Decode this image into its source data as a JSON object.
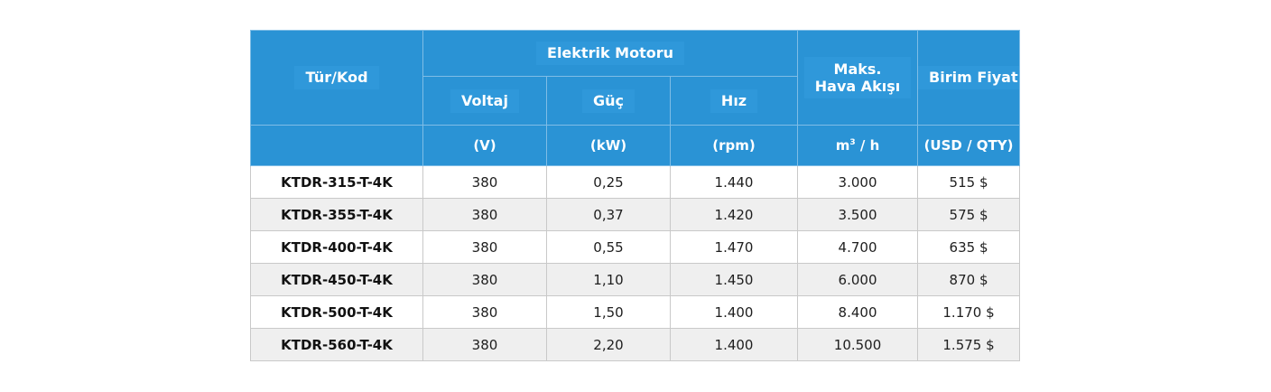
{
  "header": {
    "tur_kod": "Tür/Kod",
    "elektrik_motoru": "Elektrik Motoru",
    "voltaj": "Voltaj",
    "guc": "Güç",
    "hiz": "Hız",
    "maks_line1": "Maks.",
    "maks_line2": "Hava Akışı",
    "birim_fiyat": "Birim Fiyat",
    "unit_v": "(V)",
    "unit_kw": "(kW)",
    "unit_rpm": "(rpm)",
    "unit_airflow_base": "m",
    "unit_airflow_sup": "3",
    "unit_airflow_rest": "/ h",
    "unit_price": "(USD / QTY)"
  },
  "rows": [
    {
      "code": "KTDR-315-T-4K",
      "voltaj": "380",
      "guc": "0,25",
      "hiz": "1.440",
      "hava": "3.000",
      "fiyat": "515 $"
    },
    {
      "code": "KTDR-355-T-4K",
      "voltaj": "380",
      "guc": "0,37",
      "hiz": "1.420",
      "hava": "3.500",
      "fiyat": "575 $"
    },
    {
      "code": "KTDR-400-T-4K",
      "voltaj": "380",
      "guc": "0,55",
      "hiz": "1.470",
      "hava": "4.700",
      "fiyat": "635 $"
    },
    {
      "code": "KTDR-450-T-4K",
      "voltaj": "380",
      "guc": "1,10",
      "hiz": "1.450",
      "hava": "6.000",
      "fiyat": "870 $"
    },
    {
      "code": "KTDR-500-T-4K",
      "voltaj": "380",
      "guc": "1,50",
      "hiz": "1.400",
      "hava": "8.400",
      "fiyat": "1.170 $"
    },
    {
      "code": "KTDR-560-T-4K",
      "voltaj": "380",
      "guc": "2,20",
      "hiz": "1.400",
      "hava": "10.500",
      "fiyat": "1.575 $"
    }
  ]
}
